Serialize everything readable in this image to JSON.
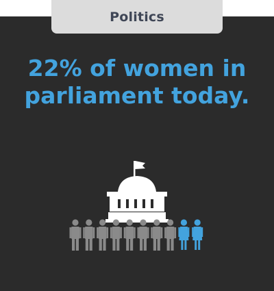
{
  "category": {
    "label": "Politics"
  },
  "headline": {
    "text": "22% of women in parliament today."
  },
  "illustration": {
    "icon": "parliament-building-icon",
    "people": {
      "total": 10,
      "women": 2,
      "colors": {
        "men": "#8a8a8a",
        "women": "#43a3de"
      }
    }
  },
  "colors": {
    "background": "#2b2b2b",
    "accent": "#43a3de",
    "tab": "#dcdcdc",
    "building": "#ffffff"
  }
}
